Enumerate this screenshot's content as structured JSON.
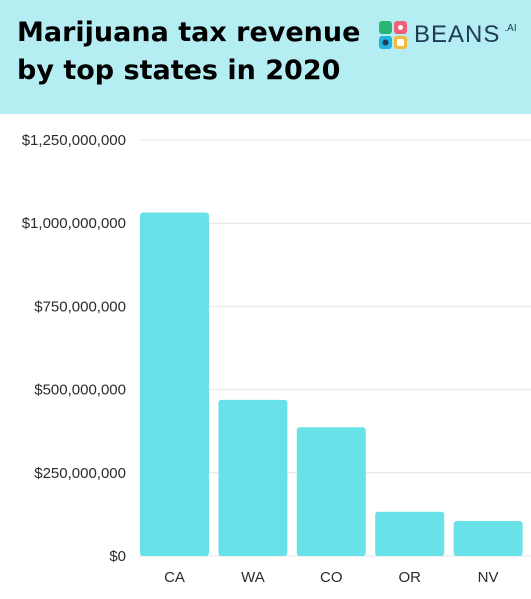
{
  "header": {
    "title_line1": "Marijuana tax revenue",
    "title_line2": "by top states in 2020",
    "logo_name": "BEANS",
    "logo_suffix": ".AI",
    "logo_icon": "beans-logo-icon"
  },
  "colors": {
    "header_bg": "#b5eef2",
    "bar": "#68e2e8",
    "grid": "#e4e4e4",
    "logo_text": "#1f3a56"
  },
  "chart_data": {
    "type": "bar",
    "title": "Marijuana tax revenue by top states in 2020",
    "xlabel": "",
    "ylabel": "",
    "categories": [
      "CA",
      "WA",
      "CO",
      "OR",
      "NV"
    ],
    "values": [
      1032000000,
      469000000,
      387000000,
      133000000,
      105000000
    ],
    "ylim": [
      0,
      1250000000
    ],
    "yticks": [
      0,
      250000000,
      500000000,
      750000000,
      1000000000,
      1250000000
    ],
    "ytick_labels": [
      "$0",
      "$250,000,000",
      "$500,000,000",
      "$750,000,000",
      "$1,000,000,000",
      "$1,250,000,000"
    ],
    "grid": true,
    "legend": "none"
  }
}
